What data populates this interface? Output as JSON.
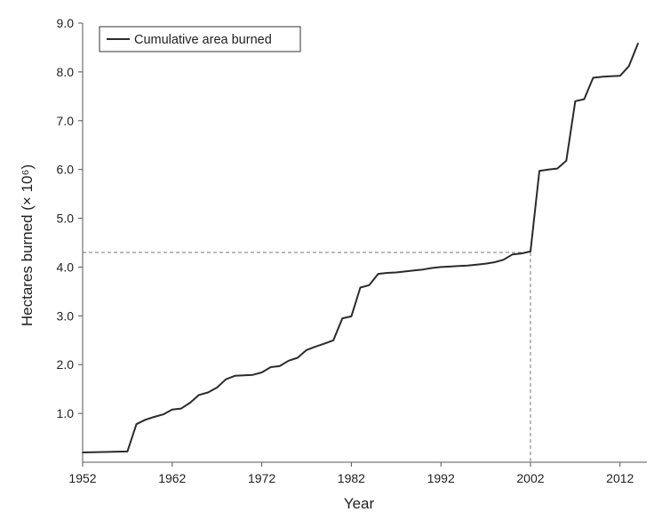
{
  "chart_data": {
    "type": "line",
    "title": "",
    "xlabel": "Year",
    "ylabel": "Hectares burned (× 10⁶)",
    "xlim": [
      1952,
      2015
    ],
    "ylim": [
      0,
      9.0
    ],
    "xticks": [
      1952,
      1962,
      1972,
      1982,
      1992,
      2002,
      2012
    ],
    "xtick_labels": [
      "1952",
      "1962",
      "1972",
      "1982",
      "1992",
      "2002",
      "2012"
    ],
    "yticks": [
      1.0,
      2.0,
      3.0,
      4.0,
      5.0,
      6.0,
      7.0,
      8.0,
      9.0
    ],
    "ytick_labels": [
      "1.0",
      "2.0",
      "3.0",
      "4.0",
      "5.0",
      "6.0",
      "7.0",
      "8.0",
      "9.0"
    ],
    "grid": false,
    "legend": {
      "position": "top-left",
      "entries": [
        "Cumulative area burned"
      ]
    },
    "colors": {
      "line": "#2b2b2b",
      "axis": "#555555",
      "reference": "#777777"
    },
    "series": [
      {
        "name": "Cumulative area burned",
        "x": [
          1952,
          1957,
          1958,
          1959,
          1960,
          1961,
          1962,
          1963,
          1964,
          1965,
          1966,
          1967,
          1968,
          1969,
          1970,
          1971,
          1972,
          1973,
          1974,
          1975,
          1976,
          1977,
          1978,
          1979,
          1980,
          1981,
          1982,
          1983,
          1984,
          1985,
          1986,
          1987,
          1988,
          1989,
          1990,
          1991,
          1992,
          1993,
          1994,
          1995,
          1996,
          1997,
          1998,
          1999,
          2000,
          2001,
          2002,
          2003,
          2004,
          2005,
          2006,
          2007,
          2008,
          2009,
          2010,
          2011,
          2012,
          2013,
          2014
        ],
        "y": [
          0.2,
          0.22,
          0.78,
          0.87,
          0.93,
          0.98,
          1.08,
          1.1,
          1.22,
          1.38,
          1.43,
          1.53,
          1.7,
          1.77,
          1.78,
          1.79,
          1.84,
          1.95,
          1.97,
          2.08,
          2.14,
          2.3,
          2.37,
          2.43,
          2.5,
          2.95,
          2.99,
          3.58,
          3.63,
          3.86,
          3.88,
          3.89,
          3.91,
          3.93,
          3.95,
          3.98,
          4.0,
          4.01,
          4.02,
          4.03,
          4.05,
          4.07,
          4.1,
          4.15,
          4.26,
          4.28,
          4.32,
          5.97,
          6.0,
          6.02,
          6.18,
          7.4,
          7.44,
          7.88,
          7.9,
          7.91,
          7.92,
          8.12,
          8.58
        ]
      }
    ],
    "reference_point": {
      "x": 2002,
      "y": 4.3
    }
  }
}
